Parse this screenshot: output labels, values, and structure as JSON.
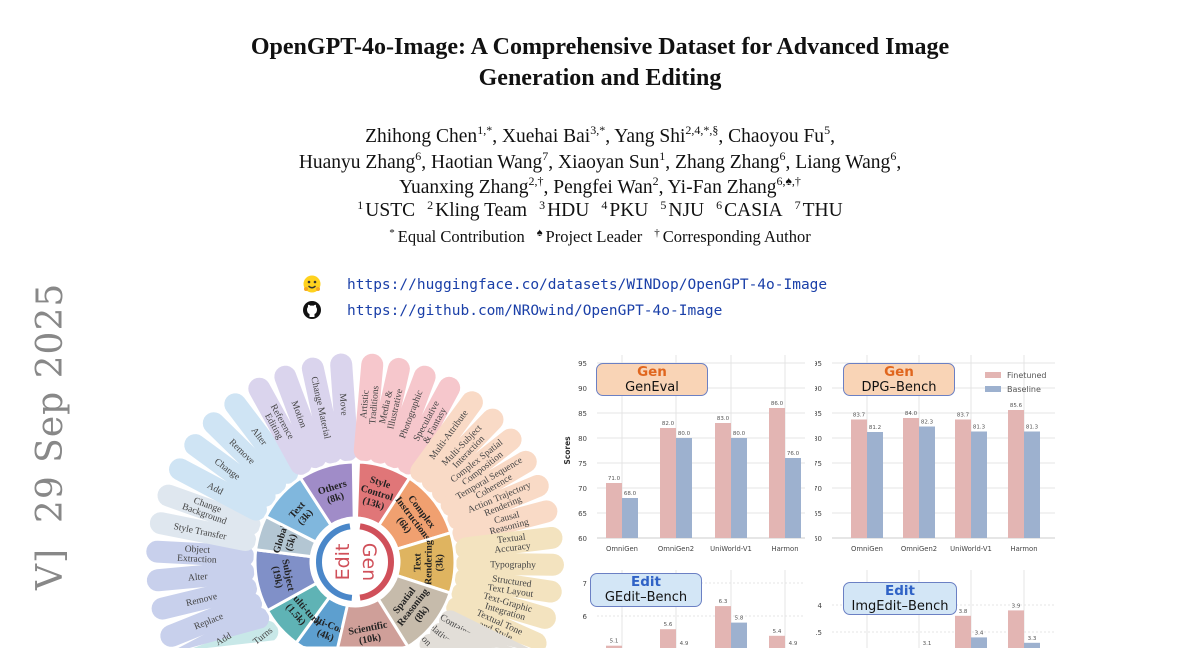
{
  "side_stamp": "V]  29 Sep 2025",
  "paper": {
    "title_line1": "OpenGPT-4o-Image: A Comprehensive Dataset for Advanced Image",
    "title_line2": "Generation and Editing",
    "author_lines": [
      [
        {
          "name": "Zhihong Chen",
          "sup": "1,*",
          "delim": ", "
        },
        {
          "name": "Xuehai Bai",
          "sup": "3,*",
          "delim": ", "
        },
        {
          "name": "Yang Shi",
          "sup": "2,4,*,§",
          "delim": ", "
        },
        {
          "name": "Chaoyou Fu",
          "sup": "5",
          "delim": ","
        }
      ],
      [
        {
          "name": "Huanyu Zhang",
          "sup": "6",
          "delim": ", "
        },
        {
          "name": "Haotian Wang",
          "sup": "7",
          "delim": ", "
        },
        {
          "name": "Xiaoyan Sun",
          "sup": "1",
          "delim": ", "
        },
        {
          "name": "Zhang Zhang",
          "sup": "6",
          "delim": ", "
        },
        {
          "name": "Liang Wang",
          "sup": "6",
          "delim": ","
        }
      ],
      [
        {
          "name": "Yuanxing Zhang",
          "sup": "2,†",
          "delim": ", "
        },
        {
          "name": "Pengfei Wan",
          "sup": "2",
          "delim": ", "
        },
        {
          "name": "Yi-Fan Zhang",
          "sup": "6,♠,†",
          "delim": ""
        }
      ]
    ],
    "affiliations": [
      {
        "sup": "1",
        "name": "USTC"
      },
      {
        "sup": "2",
        "name": "Kling Team"
      },
      {
        "sup": "3",
        "name": "HDU"
      },
      {
        "sup": "4",
        "name": "PKU"
      },
      {
        "sup": "5",
        "name": "NJU"
      },
      {
        "sup": "6",
        "name": "CASIA"
      },
      {
        "sup": "7",
        "name": "THU"
      }
    ],
    "notes": [
      {
        "sym": "*",
        "text": "Equal Contribution"
      },
      {
        "sym": "♠",
        "text": "Project Leader"
      },
      {
        "sym": "†",
        "text": "Corresponding Author"
      }
    ],
    "links": [
      {
        "icon": "huggingface-icon",
        "url": "https://huggingface.co/datasets/WINDop/OpenGPT-4o-Image"
      },
      {
        "icon": "github-icon",
        "url": "https://github.com/NROwind/OpenGPT-4o-Image"
      }
    ]
  },
  "wheel": {
    "center_edit": "Edit",
    "center_gen": "Gen",
    "colors": {
      "edit": "#4a87c9",
      "gen": "#d0505a"
    },
    "edit_categories": [
      {
        "name": "Multi-Compo",
        "count": "(4k)",
        "color": "#5d9fcf"
      },
      {
        "name": "Multi-turn",
        "count": "(1.5k)",
        "color": "#5fb3b5"
      },
      {
        "name": "Subject",
        "count": "(19k)",
        "color": "#8090c8"
      },
      {
        "name": "Global",
        "count": "(5k)",
        "color": "#b3c6d3"
      },
      {
        "name": "Text",
        "count": "(3k)",
        "color": "#80b7dd"
      },
      {
        "name": "Others",
        "count": "(8k)",
        "color": "#a08cc8"
      }
    ],
    "gen_categories": [
      {
        "name": "Style Control",
        "count": "(13k)",
        "color": "#e07678"
      },
      {
        "name": "Complex Instructions",
        "count": "(6k)",
        "color": "#f0a070"
      },
      {
        "name": "Text Rendering",
        "count": "(3k)",
        "color": "#dfb460"
      },
      {
        "name": "Spatial Reasoning",
        "count": "(8k)",
        "color": "#c6bbab"
      },
      {
        "name": "Scientific",
        "count": "(10k)",
        "color": "#cf9f99"
      }
    ],
    "edit_subtasks": [
      {
        "label": "Turns",
        "color": "#c8e8e8"
      },
      {
        "label": "Add",
        "color": "#c8d0ec"
      },
      {
        "label": "Replace",
        "color": "#c8d0ec"
      },
      {
        "label": "Remove",
        "color": "#c8d0ec"
      },
      {
        "label": "Alter",
        "color": "#c8d0ec"
      },
      {
        "label": "Object Extraction",
        "color": "#c8d0ec"
      },
      {
        "label": "Style Transfer",
        "color": "#dfe7ef"
      },
      {
        "label": "Change Background",
        "color": "#dfe7ef"
      },
      {
        "label": "Add",
        "color": "#cfe4f4"
      },
      {
        "label": "Change",
        "color": "#cfe4f4"
      },
      {
        "label": "Remove",
        "color": "#cfe4f4"
      },
      {
        "label": "Alter",
        "color": "#cfe4f4"
      },
      {
        "label": "Reference Editing",
        "color": "#dad4ed"
      },
      {
        "label": "Motion",
        "color": "#dad4ed"
      },
      {
        "label": "Change Material",
        "color": "#dad4ed"
      },
      {
        "label": "Move",
        "color": "#dad4ed"
      }
    ],
    "gen_subtasks": [
      {
        "label": "Artistic Traditions",
        "color": "#f6c7cc"
      },
      {
        "label": "Media & Illustrative",
        "color": "#f6c7cc"
      },
      {
        "label": "Photographic",
        "color": "#f6c7cc"
      },
      {
        "label": "Speculative & Fantasy",
        "color": "#f6c7cc"
      },
      {
        "label": "Multi-Attribute",
        "color": "#f9dac6"
      },
      {
        "label": "Multi-Subject Interaction",
        "color": "#f9dac6"
      },
      {
        "label": "Complex Spatial Composition",
        "color": "#f9dac6"
      },
      {
        "label": "Temporal Sequence Coherence",
        "color": "#f9dac6"
      },
      {
        "label": "Action Trajectory Rendering",
        "color": "#f9dac6"
      },
      {
        "label": "Causal Reasoning",
        "color": "#f9dac6"
      },
      {
        "label": "Textual Accuracy",
        "color": "#f3e3bf"
      },
      {
        "label": "Typography",
        "color": "#f3e3bf"
      },
      {
        "label": "Structured Text Layout",
        "color": "#f3e3bf"
      },
      {
        "label": "Text-Graphic Integration",
        "color": "#f3e3bf"
      },
      {
        "label": "Textual Tone and Style",
        "color": "#f3e3bf"
      },
      {
        "label": "Containment",
        "color": "#e2ded8"
      },
      {
        "label": "Relative",
        "color": "#e2ded8"
      },
      {
        "label": "Con",
        "color": "#e2ded8"
      }
    ]
  },
  "chart_data": [
    {
      "type": "bar",
      "task": "Gen",
      "title": "GenEval",
      "ylabel": "Scores",
      "ylim": [
        60,
        95
      ],
      "yticks": [
        60,
        65,
        70,
        75,
        80,
        85,
        90,
        95
      ],
      "grid": true,
      "categories": [
        "OmniGen",
        "OmniGen2",
        "UniWorld-V1",
        "Harmon"
      ],
      "series": [
        {
          "name": "Finetuned",
          "color": "#e3b5b3",
          "values": [
            71.0,
            82.0,
            83.0,
            86.0
          ]
        },
        {
          "name": "Baseline",
          "color": "#9db1cf",
          "values": [
            68.0,
            80.0,
            80.0,
            76.0
          ]
        }
      ]
    },
    {
      "type": "bar",
      "task": "Gen",
      "title": "DPG–Bench",
      "ylabel": "Scores",
      "ylim": [
        60,
        95
      ],
      "yticks": [
        60,
        65,
        70,
        75,
        80,
        85,
        90,
        95
      ],
      "grid": true,
      "legend": "top-right",
      "categories": [
        "OmniGen",
        "OmniGen2",
        "UniWorld-V1",
        "Harmon"
      ],
      "series": [
        {
          "name": "Finetuned",
          "color": "#e3b5b3",
          "values": [
            83.7,
            84.0,
            83.7,
            85.6
          ]
        },
        {
          "name": "Baseline",
          "color": "#9db1cf",
          "values": [
            81.2,
            82.3,
            81.3,
            81.3
          ]
        }
      ]
    },
    {
      "type": "bar",
      "task": "Edit",
      "title": "GEdit–Bench",
      "yticks": [
        6,
        7
      ],
      "grid": true,
      "series": [
        {
          "name": "Finetuned",
          "color": "#e3b5b3",
          "values": [
            5.1,
            5.6,
            6.3,
            5.4
          ]
        },
        {
          "name": "Baseline",
          "color": "#9db1cf",
          "values": [
            null,
            4.9,
            5.8,
            4.9
          ]
        }
      ]
    },
    {
      "type": "bar",
      "task": "Edit",
      "title": "ImgEdit–Bench",
      "yticks": [
        3.5,
        4.0
      ],
      "grid": true,
      "series": [
        {
          "name": "Finetuned",
          "color": "#e3b5b3",
          "values": [
            null,
            null,
            3.8,
            3.9
          ]
        },
        {
          "name": "Baseline",
          "color": "#9db1cf",
          "values": [
            null,
            3.1,
            3.4,
            3.3
          ]
        }
      ]
    }
  ]
}
